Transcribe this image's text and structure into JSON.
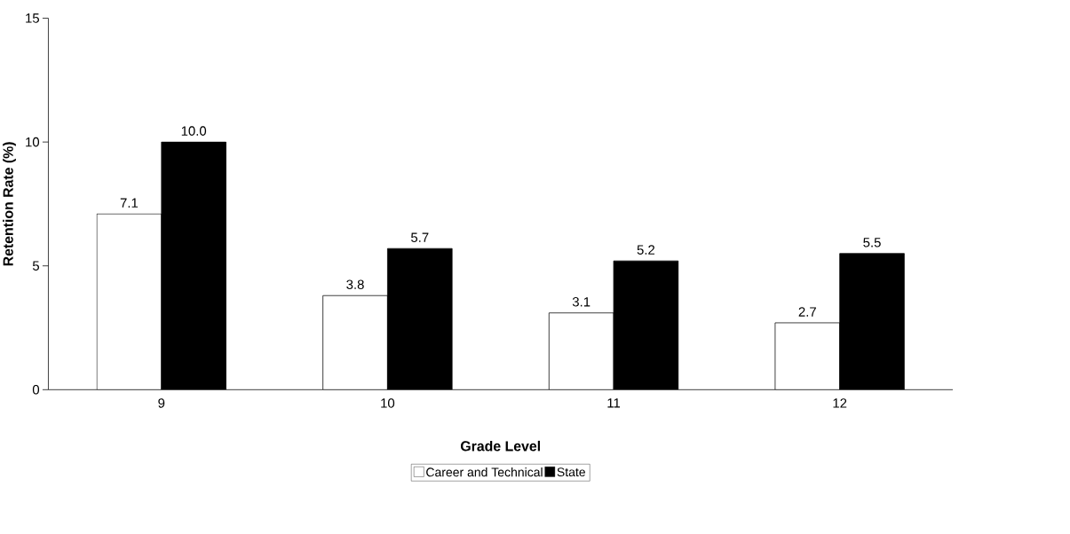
{
  "chart_data": {
    "type": "bar",
    "xlabel": "Grade Level",
    "ylabel": "Retention Rate (%)",
    "categories": [
      "9",
      "10",
      "11",
      "12"
    ],
    "series": [
      {
        "name": "Career and Technical",
        "color": "#ffffff",
        "values": [
          7.1,
          3.8,
          3.1,
          2.7
        ],
        "value_labels": [
          "7.1",
          "3.8",
          "3.1",
          "2.7"
        ]
      },
      {
        "name": "State",
        "color": "#000000",
        "values": [
          10.0,
          5.7,
          5.2,
          5.5
        ],
        "value_labels": [
          "10.0",
          "5.7",
          "5.2",
          "5.5"
        ]
      }
    ],
    "ylim": [
      0,
      15
    ],
    "yticks": [
      0,
      5,
      10,
      15
    ],
    "legend": "bottom",
    "grid": false
  }
}
